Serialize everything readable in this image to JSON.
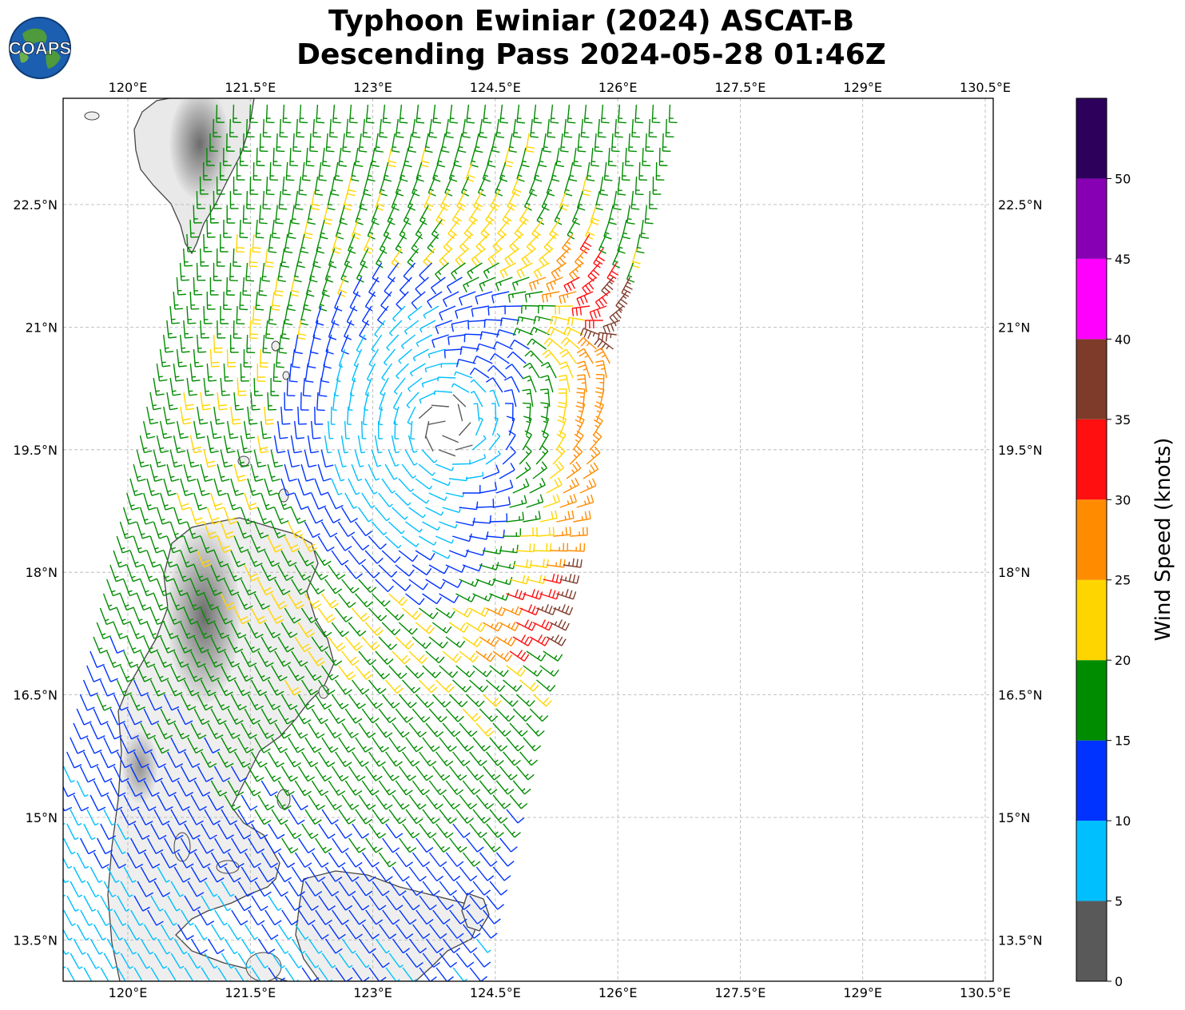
{
  "title": {
    "line1": "Typhoon Ewiniar (2024) ASCAT-B",
    "line2": "Descending Pass 2024-05-28 01:46Z"
  },
  "logo": {
    "text": "COAPS",
    "icon": "globe-logo-icon"
  },
  "map": {
    "lon_range": [
      118.7,
      130.1
    ],
    "lat_range": [
      13.0,
      23.8
    ],
    "lon_ticks": [
      {
        "value": 120.0,
        "label": "120°E"
      },
      {
        "value": 121.5,
        "label": "121.5°E"
      },
      {
        "value": 123.0,
        "label": "123°E"
      },
      {
        "value": 124.5,
        "label": "124.5°E"
      },
      {
        "value": 126.0,
        "label": "126°E"
      },
      {
        "value": 127.5,
        "label": "127.5°E"
      },
      {
        "value": 129.0,
        "label": "129°E"
      },
      {
        "value": 130.5,
        "label": "130.5°E"
      }
    ],
    "lat_ticks": [
      {
        "value": 22.5,
        "label": "22.5°N"
      },
      {
        "value": 21.0,
        "label": "21°N"
      },
      {
        "value": 19.5,
        "label": "19.5°N"
      },
      {
        "value": 18.0,
        "label": "18°N"
      },
      {
        "value": 16.5,
        "label": "16.5°N"
      },
      {
        "value": 15.0,
        "label": "15°N"
      },
      {
        "value": 13.5,
        "label": "13.5°N"
      }
    ],
    "grid": true,
    "storm_center": {
      "lon": 123.9,
      "lat": 19.8
    },
    "swath": {
      "north_lon_range": [
        121.5,
        126.5
      ],
      "south_lon_range": [
        118.7,
        124.3
      ],
      "lat_range": [
        13.0,
        23.8
      ]
    }
  },
  "colorbar": {
    "label": "Wind Speed (knots)",
    "bins": [
      {
        "min": 0,
        "max": 5,
        "color": "#595959"
      },
      {
        "min": 5,
        "max": 10,
        "color": "#00bfff"
      },
      {
        "min": 10,
        "max": 15,
        "color": "#0033ff"
      },
      {
        "min": 15,
        "max": 20,
        "color": "#008c00"
      },
      {
        "min": 20,
        "max": 25,
        "color": "#ffd500"
      },
      {
        "min": 25,
        "max": 30,
        "color": "#ff8c00"
      },
      {
        "min": 30,
        "max": 35,
        "color": "#ff0f0f"
      },
      {
        "min": 35,
        "max": 40,
        "color": "#7f3b2a"
      },
      {
        "min": 40,
        "max": 45,
        "color": "#ff00ff"
      },
      {
        "min": 45,
        "max": 50,
        "color": "#8800b3"
      },
      {
        "min": 50,
        "max": 55,
        "color": "#2d005c"
      }
    ],
    "tick_labels": [
      "0",
      "5",
      "10",
      "15",
      "20",
      "25",
      "30",
      "35",
      "40",
      "45",
      "50"
    ]
  }
}
